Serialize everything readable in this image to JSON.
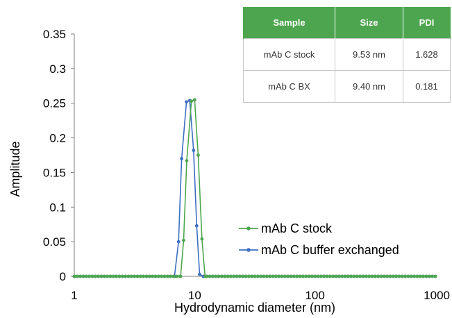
{
  "chart_data": {
    "type": "line",
    "xscale": "log",
    "xlim": [
      1,
      1000
    ],
    "ylim": [
      0,
      0.35
    ],
    "xticks": [
      "1",
      "10",
      "100",
      "1000"
    ],
    "yticks": [
      "0",
      "0.05",
      "0.1",
      "0.15",
      "0.2",
      "0.25",
      "0.3",
      "0.35"
    ],
    "xlabel": "Hydrodynamic diameter (nm)",
    "ylabel": "Amplitude",
    "grid": false,
    "legend_position": "lower-right",
    "series": [
      {
        "name": "mAb C stock",
        "color": "#4da64f",
        "x": [
          7.64,
          8.1,
          8.6,
          9.4,
          10.0,
          10.7,
          11.5,
          12.2
        ],
        "y": [
          0,
          0.052,
          0.167,
          0.253,
          0.255,
          0.175,
          0.054,
          0
        ]
      },
      {
        "name": "mAb C buffer exchanged",
        "color": "#3c6fc2",
        "x": [
          6.8,
          7.35,
          7.8,
          8.55,
          9.1,
          9.8,
          10.4,
          11.0,
          11.8
        ],
        "y": [
          0,
          0.05,
          0.17,
          0.252,
          0.254,
          0.182,
          0.073,
          0.003,
          0
        ]
      }
    ]
  },
  "table": {
    "headers": [
      "Sample",
      "Size",
      "PDI"
    ],
    "rows": [
      [
        "mAb C stock",
        "9.53 nm",
        "1.628"
      ],
      [
        "mAb C BX",
        "9.40 nm",
        "0.181"
      ]
    ]
  }
}
